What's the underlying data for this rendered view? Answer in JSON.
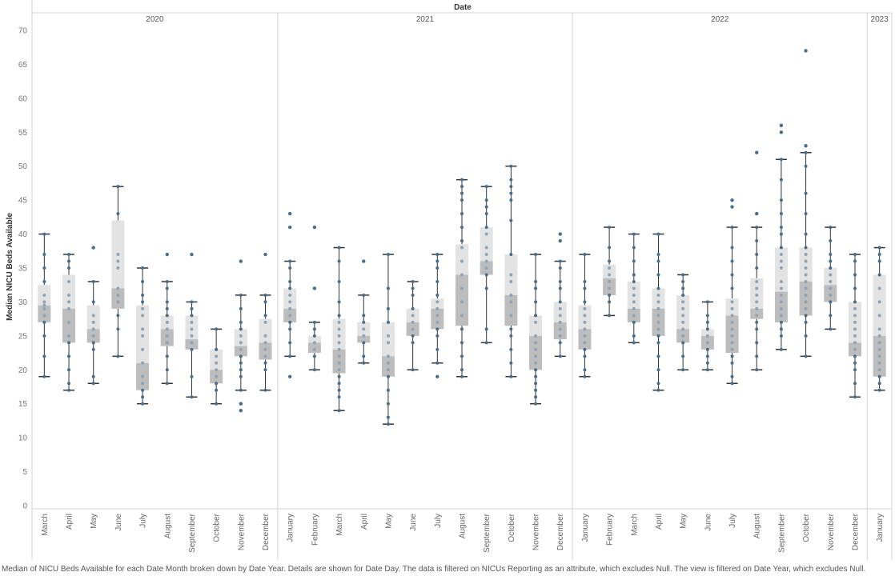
{
  "chart_data": {
    "type": "boxplot",
    "title": "Date",
    "ylabel": "Median NICU Beds Available",
    "ylim": [
      0,
      70
    ],
    "yticks": [
      0,
      5,
      10,
      15,
      20,
      25,
      30,
      35,
      40,
      45,
      50,
      55,
      60,
      65,
      70
    ],
    "grid": false,
    "box_colors": {
      "upper": "#e3e3e3",
      "lower": "#bdbdbd",
      "point": "#4a6e8a",
      "whisker": "#333333"
    },
    "panels": [
      {
        "year": "2020",
        "months": [
          {
            "month": "March",
            "min": 19,
            "q1": 27,
            "median": 29.5,
            "q3": 32.5,
            "max": 40,
            "outliers": [],
            "points": [
              19,
              22,
              25,
              27,
              28,
              29,
              29.5,
              30,
              31,
              33,
              35,
              37,
              40
            ]
          },
          {
            "month": "April",
            "min": 17,
            "q1": 24,
            "median": 29,
            "q3": 34,
            "max": 37,
            "outliers": [],
            "points": [
              17,
              18,
              20,
              22,
              24,
              25,
              27,
              29,
              30,
              31,
              33,
              35,
              36,
              37
            ]
          },
          {
            "month": "May",
            "min": 18,
            "q1": 24,
            "median": 26,
            "q3": 29.5,
            "max": 33,
            "outliers": [
              38
            ],
            "points": [
              18,
              19,
              23,
              24,
              25,
              26,
              27,
              28,
              30,
              33
            ]
          },
          {
            "month": "June",
            "min": 22,
            "q1": 29,
            "median": 32,
            "q3": 42,
            "max": 47,
            "outliers": [],
            "points": [
              22,
              26,
              28,
              30,
              31,
              32,
              35,
              36,
              37,
              43,
              47
            ]
          },
          {
            "month": "July",
            "min": 15,
            "q1": 17,
            "median": 21,
            "q3": 29.5,
            "max": 35,
            "outliers": [],
            "points": [
              15,
              16,
              17,
              18,
              19,
              21,
              23,
              25,
              26,
              28,
              29,
              30,
              31,
              33,
              35
            ]
          },
          {
            "month": "August",
            "min": 18,
            "q1": 23.5,
            "median": 26,
            "q3": 28,
            "max": 33,
            "outliers": [
              37
            ],
            "points": [
              18,
              20,
              22,
              24,
              25,
              26,
              27,
              28,
              29,
              30,
              32,
              33
            ]
          },
          {
            "month": "September",
            "min": 16,
            "q1": 23,
            "median": 24.5,
            "q3": 28,
            "max": 30,
            "outliers": [
              37
            ],
            "points": [
              16,
              19,
              23,
              24,
              25,
              26,
              27,
              28,
              29,
              30
            ]
          },
          {
            "month": "October",
            "min": 15,
            "q1": 18,
            "median": 20,
            "q3": 23,
            "max": 26,
            "outliers": [],
            "points": [
              15,
              17,
              18,
              19,
              20,
              21,
              22,
              23,
              26
            ]
          },
          {
            "month": "November",
            "min": 17,
            "q1": 22,
            "median": 23.5,
            "q3": 26,
            "max": 31,
            "outliers": [
              14,
              15,
              36
            ],
            "points": [
              17,
              19,
              20,
              21,
              22,
              23,
              24,
              25,
              26,
              27,
              29,
              31
            ]
          },
          {
            "month": "December",
            "min": 17,
            "q1": 21.5,
            "median": 24,
            "q3": 27.5,
            "max": 31,
            "outliers": [
              37
            ],
            "points": [
              17,
              20,
              21,
              22,
              23,
              24,
              25,
              27,
              28,
              30,
              31
            ]
          }
        ]
      },
      {
        "year": "2021",
        "months": [
          {
            "month": "January",
            "min": 22,
            "q1": 27,
            "median": 29,
            "q3": 32,
            "max": 36,
            "outliers": [
              19,
              41,
              43
            ],
            "points": [
              22,
              24,
              26,
              27,
              28,
              29,
              30,
              31,
              32,
              33,
              35,
              36
            ]
          },
          {
            "month": "February",
            "min": 20,
            "q1": 22.5,
            "median": 24,
            "q3": 25,
            "max": 27,
            "outliers": [
              32,
              41
            ],
            "points": [
              20,
              22,
              23,
              24,
              25,
              26,
              27
            ]
          },
          {
            "month": "March",
            "min": 14,
            "q1": 19.5,
            "median": 23,
            "q3": 27.5,
            "max": 38,
            "outliers": [],
            "points": [
              14,
              16,
              17,
              18,
              19,
              20,
              21,
              22,
              23,
              24,
              25,
              26,
              27,
              28,
              30,
              33,
              36,
              38
            ]
          },
          {
            "month": "April",
            "min": 21,
            "q1": 24,
            "median": 25,
            "q3": 27,
            "max": 31,
            "outliers": [
              36
            ],
            "points": [
              21,
              22,
              24,
              25,
              26,
              27,
              28,
              31
            ]
          },
          {
            "month": "May",
            "min": 12,
            "q1": 19,
            "median": 22,
            "q3": 27,
            "max": 37,
            "outliers": [],
            "points": [
              12,
              13,
              15,
              17,
              19,
              20,
              21,
              22,
              24,
              25,
              27,
              29,
              32,
              37
            ]
          },
          {
            "month": "June",
            "min": 20,
            "q1": 25,
            "median": 27,
            "q3": 29,
            "max": 33,
            "outliers": [],
            "points": [
              20,
              24,
              25,
              26,
              27,
              28,
              29,
              31,
              32,
              33
            ]
          },
          {
            "month": "July",
            "min": 21,
            "q1": 26,
            "median": 29,
            "q3": 30.5,
            "max": 37,
            "outliers": [
              19
            ],
            "points": [
              21,
              23,
              25,
              26,
              27,
              28,
              29,
              30,
              31,
              33,
              35,
              36,
              37
            ]
          },
          {
            "month": "August",
            "min": 19,
            "q1": 26.5,
            "median": 34,
            "q3": 38.5,
            "max": 48,
            "outliers": [],
            "points": [
              19,
              20,
              22,
              24,
              26,
              28,
              30,
              32,
              34,
              36,
              38,
              39,
              41,
              43,
              45,
              46,
              47,
              48
            ]
          },
          {
            "month": "September",
            "min": 24,
            "q1": 34,
            "median": 36,
            "q3": 41,
            "max": 47,
            "outliers": [],
            "points": [
              24,
              26,
              32,
              34,
              35,
              36,
              37,
              38,
              40,
              41,
              43,
              44,
              45,
              47
            ]
          },
          {
            "month": "October",
            "min": 19,
            "q1": 26.5,
            "median": 31,
            "q3": 37,
            "max": 50,
            "outliers": [],
            "points": [
              19,
              21,
              23,
              25,
              26,
              28,
              30,
              31,
              33,
              34,
              37,
              42,
              45,
              46,
              47,
              48,
              50
            ]
          },
          {
            "month": "November",
            "min": 15,
            "q1": 20,
            "median": 25,
            "q3": 28,
            "max": 37,
            "outliers": [],
            "points": [
              15,
              16,
              17,
              18,
              19,
              20,
              21,
              22,
              23,
              24,
              25,
              27,
              28,
              30,
              32,
              33,
              37
            ]
          },
          {
            "month": "December",
            "min": 22,
            "q1": 24.5,
            "median": 27,
            "q3": 30,
            "max": 36,
            "outliers": [
              39,
              40
            ],
            "points": [
              22,
              24,
              25,
              26,
              27,
              28,
              29,
              30,
              32,
              33,
              35,
              36
            ]
          }
        ]
      },
      {
        "year": "2022",
        "months": [
          {
            "month": "January",
            "min": 19,
            "q1": 23,
            "median": 26,
            "q3": 29.5,
            "max": 37,
            "outliers": [],
            "points": [
              19,
              20,
              22,
              23,
              24,
              25,
              26,
              27,
              28,
              29,
              30,
              32,
              33,
              37
            ]
          },
          {
            "month": "February",
            "min": 28,
            "q1": 31,
            "median": 33.5,
            "q3": 35.5,
            "max": 41,
            "outliers": [],
            "points": [
              28,
              30,
              31,
              32,
              33,
              34,
              35,
              36,
              38,
              41
            ]
          },
          {
            "month": "March",
            "min": 24,
            "q1": 27,
            "median": 29,
            "q3": 33,
            "max": 40,
            "outliers": [],
            "points": [
              24,
              25,
              27,
              28,
              29,
              30,
              31,
              32,
              33,
              34,
              36,
              38,
              40
            ]
          },
          {
            "month": "April",
            "min": 17,
            "q1": 25,
            "median": 29,
            "q3": 32,
            "max": 40,
            "outliers": [],
            "points": [
              17,
              18,
              20,
              22,
              24,
              25,
              26,
              27,
              28,
              29,
              30,
              31,
              32,
              34,
              36,
              37,
              40
            ]
          },
          {
            "month": "May",
            "min": 20,
            "q1": 24,
            "median": 26,
            "q3": 31,
            "max": 34,
            "outliers": [],
            "points": [
              20,
              22,
              24,
              25,
              26,
              27,
              28,
              29,
              30,
              31,
              32,
              33,
              34
            ]
          },
          {
            "month": "June",
            "min": 20,
            "q1": 23,
            "median": 25,
            "q3": 26,
            "max": 30,
            "outliers": [],
            "points": [
              20,
              21,
              22,
              23,
              24,
              25,
              26,
              27,
              28,
              30
            ]
          },
          {
            "month": "July",
            "min": 18,
            "q1": 22.5,
            "median": 28,
            "q3": 30.5,
            "max": 41,
            "outliers": [
              44,
              45
            ],
            "points": [
              18,
              19,
              21,
              22,
              23,
              24,
              25,
              26,
              27,
              28,
              29,
              30,
              32,
              34,
              36,
              38,
              41
            ]
          },
          {
            "month": "August",
            "min": 20,
            "q1": 27.5,
            "median": 29,
            "q3": 33.5,
            "max": 41,
            "outliers": [
              43,
              52
            ],
            "points": [
              20,
              22,
              24,
              26,
              27,
              28,
              29,
              30,
              31,
              32,
              33,
              35,
              37,
              39,
              41
            ]
          },
          {
            "month": "September",
            "min": 23,
            "q1": 27,
            "median": 31.5,
            "q3": 38,
            "max": 51,
            "outliers": [
              55,
              56
            ],
            "points": [
              23,
              25,
              26,
              27,
              28,
              29,
              30,
              31,
              32,
              33,
              35,
              36,
              37,
              38,
              40,
              41,
              43,
              45,
              48,
              51
            ]
          },
          {
            "month": "October",
            "min": 22,
            "q1": 28,
            "median": 33,
            "q3": 38,
            "max": 52,
            "outliers": [
              53,
              67
            ],
            "points": [
              22,
              25,
              27,
              28,
              29,
              30,
              31,
              32,
              33,
              34,
              35,
              36,
              37,
              38,
              40,
              43,
              46,
              50,
              52
            ]
          },
          {
            "month": "November",
            "min": 26,
            "q1": 30,
            "median": 32.5,
            "q3": 35,
            "max": 41,
            "outliers": [],
            "points": [
              26,
              28,
              30,
              31,
              32,
              33,
              34,
              35,
              36,
              37,
              39,
              41
            ]
          },
          {
            "month": "December",
            "min": 16,
            "q1": 22,
            "median": 24,
            "q3": 30,
            "max": 37,
            "outliers": [],
            "points": [
              16,
              18,
              20,
              21,
              22,
              23,
              24,
              25,
              26,
              27,
              28,
              29,
              30,
              32,
              34,
              36,
              37
            ]
          }
        ]
      },
      {
        "year": "2023",
        "months": [
          {
            "month": "January",
            "min": 17,
            "q1": 19,
            "median": 25,
            "q3": 34,
            "max": 38,
            "outliers": [],
            "points": [
              17,
              18,
              19,
              20,
              21,
              22,
              23,
              24,
              25,
              26,
              28,
              30,
              32,
              34,
              36,
              37,
              38
            ]
          }
        ]
      }
    ]
  },
  "caption": "Median of NICU Beds Available for each Date Month broken down by Date Year.  Details are shown for Date Day. The data is filtered on NICUs Reporting as an attribute, which excludes Null. The view is filtered on Date Year, which excludes Null."
}
